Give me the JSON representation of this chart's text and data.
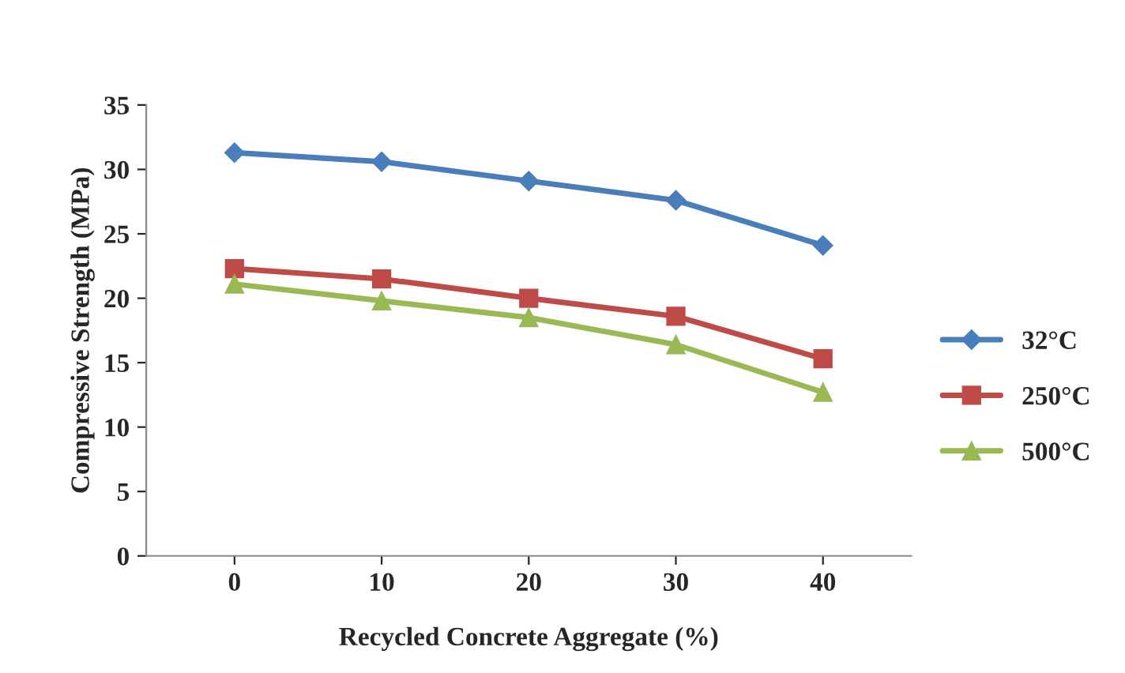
{
  "chart_data": {
    "type": "line",
    "xlabel": "Recycled Concrete Aggregate (%)",
    "ylabel": "Compressive Strength (MPa)",
    "categories": [
      "0",
      "10",
      "20",
      "30",
      "40"
    ],
    "series": [
      {
        "name": "32°C",
        "color": "#4a7ebb",
        "marker": "diamond",
        "values": [
          31.3,
          30.6,
          29.1,
          27.6,
          24.1
        ]
      },
      {
        "name": "250°C",
        "color": "#be4b48",
        "marker": "square",
        "values": [
          22.3,
          21.5,
          20.0,
          18.6,
          15.3
        ]
      },
      {
        "name": "500°C",
        "color": "#98b954",
        "marker": "triangle",
        "values": [
          21.1,
          19.8,
          18.5,
          16.4,
          12.7
        ]
      }
    ],
    "ylim": [
      0,
      35
    ],
    "yticks": [
      0,
      5,
      10,
      15,
      20,
      25,
      30,
      35
    ],
    "grid": false,
    "legend": "right",
    "line_style": "solid"
  }
}
